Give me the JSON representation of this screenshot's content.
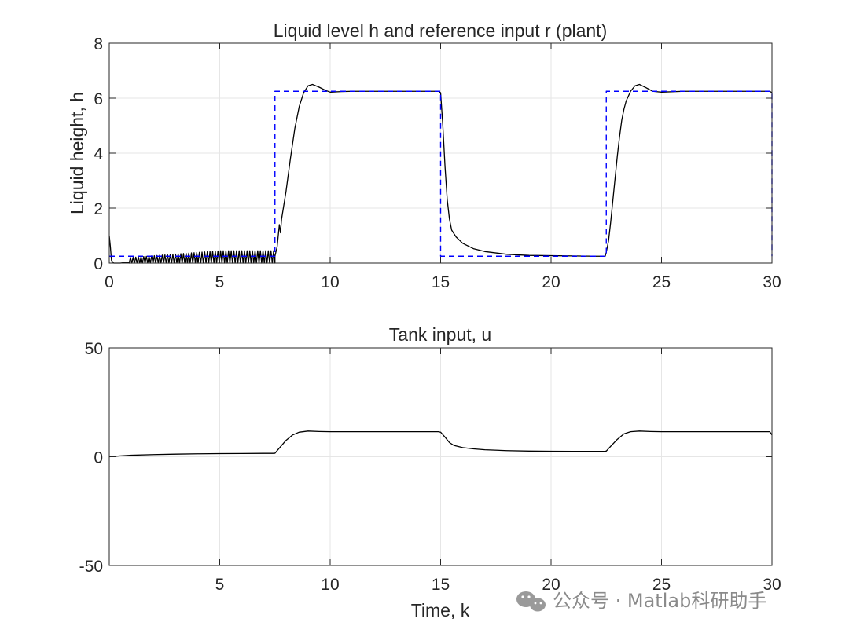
{
  "chart_data": [
    {
      "type": "line",
      "title": "Liquid level h and reference input r (plant)",
      "xlabel": "",
      "ylabel": "Liquid height, h",
      "xlim": [
        0,
        30
      ],
      "ylim": [
        0,
        8
      ],
      "xticks": [
        0,
        5,
        10,
        15,
        20,
        25,
        30
      ],
      "yticks": [
        0,
        2,
        4,
        6,
        8
      ],
      "grid": true,
      "series": [
        {
          "style": "solid",
          "color": "#000000",
          "x": [
            0.0,
            0.05,
            0.1,
            0.2,
            0.5,
            0.8,
            1.0,
            1.5,
            2.0,
            2.5,
            3.0,
            3.5,
            4.0,
            4.5,
            5.0,
            5.5,
            6.0,
            6.5,
            7.0,
            7.5,
            7.6,
            7.7,
            7.75,
            7.8,
            8.0,
            8.2,
            8.4,
            8.6,
            8.8,
            9.0,
            9.2,
            9.5,
            9.8,
            10.0,
            10.5,
            11.0,
            12.0,
            13.0,
            14.0,
            14.9,
            15.0,
            15.1,
            15.2,
            15.3,
            15.4,
            15.5,
            15.7,
            16.0,
            16.5,
            17.0,
            18.0,
            19.0,
            20.0,
            21.0,
            22.0,
            22.45,
            22.5,
            22.6,
            22.7,
            22.8,
            22.9,
            23.0,
            23.1,
            23.2,
            23.3,
            23.4,
            23.6,
            23.8,
            24.0,
            24.3,
            24.6,
            25.0,
            26.0,
            27.0,
            28.0,
            29.0,
            29.9,
            30.0
          ],
          "y": [
            1.0,
            0.6,
            0.1,
            0.0,
            0.0,
            0.03,
            0.05,
            0.1,
            0.15,
            0.2,
            0.23,
            0.24,
            0.25,
            0.25,
            0.25,
            0.25,
            0.25,
            0.25,
            0.25,
            0.25,
            0.6,
            1.4,
            1.1,
            1.6,
            2.6,
            3.8,
            4.9,
            5.7,
            6.2,
            6.45,
            6.5,
            6.4,
            6.28,
            6.22,
            6.24,
            6.25,
            6.25,
            6.25,
            6.25,
            6.25,
            6.2,
            5.0,
            3.5,
            2.3,
            1.6,
            1.2,
            0.95,
            0.72,
            0.52,
            0.42,
            0.32,
            0.28,
            0.27,
            0.26,
            0.25,
            0.25,
            0.4,
            0.8,
            1.5,
            2.3,
            3.1,
            3.9,
            4.6,
            5.2,
            5.6,
            5.9,
            6.25,
            6.45,
            6.5,
            6.38,
            6.25,
            6.22,
            6.25,
            6.25,
            6.25,
            6.25,
            6.25,
            6.2
          ]
        },
        {
          "style": "dashed",
          "color": "#0000ff",
          "x": [
            0.0,
            7.5,
            7.5,
            15.0,
            15.0,
            22.5,
            22.5,
            30.0,
            30.0
          ],
          "y": [
            0.25,
            0.25,
            6.25,
            6.25,
            0.25,
            0.25,
            6.25,
            6.25,
            0.25
          ]
        }
      ],
      "oscillation": {
        "x_start": 0.9,
        "x_end": 7.5,
        "step": 0.12,
        "amplitude_start": 0.05,
        "amplitude_end": 0.3
      }
    },
    {
      "type": "line",
      "title": "Tank input, u",
      "xlabel": "Time, k",
      "ylabel": "",
      "xlim": [
        0,
        30
      ],
      "ylim": [
        -50,
        50
      ],
      "xticks": [
        5,
        10,
        15,
        20,
        25,
        30
      ],
      "yticks": [
        -50,
        0,
        50
      ],
      "grid": true,
      "series": [
        {
          "style": "solid",
          "color": "#000000",
          "x": [
            0.0,
            0.5,
            1.0,
            2.0,
            3.0,
            4.0,
            5.0,
            6.0,
            7.0,
            7.4,
            7.5,
            7.7,
            8.0,
            8.3,
            8.6,
            9.0,
            9.5,
            10.0,
            11.0,
            12.0,
            13.0,
            14.0,
            14.9,
            15.0,
            15.2,
            15.4,
            15.6,
            16.0,
            16.5,
            17.0,
            18.0,
            19.0,
            20.0,
            21.0,
            22.0,
            22.4,
            22.5,
            22.7,
            23.0,
            23.3,
            23.6,
            24.0,
            24.5,
            25.0,
            26.0,
            27.0,
            28.0,
            29.0,
            29.9,
            30.0
          ],
          "y": [
            0.0,
            0.4,
            0.7,
            1.0,
            1.2,
            1.35,
            1.45,
            1.5,
            1.55,
            1.55,
            1.6,
            4.0,
            7.5,
            10.0,
            11.3,
            11.8,
            11.6,
            11.5,
            11.5,
            11.5,
            11.5,
            11.5,
            11.5,
            11.3,
            9.0,
            6.5,
            5.2,
            4.2,
            3.6,
            3.2,
            2.8,
            2.6,
            2.5,
            2.45,
            2.45,
            2.45,
            2.6,
            4.8,
            8.0,
            10.5,
            11.5,
            11.8,
            11.6,
            11.5,
            11.5,
            11.5,
            11.5,
            11.5,
            11.5,
            10.0
          ]
        }
      ]
    }
  ],
  "watermark": {
    "icon": "wechat-icon",
    "text": "公众号 · Matlab科研助手"
  }
}
